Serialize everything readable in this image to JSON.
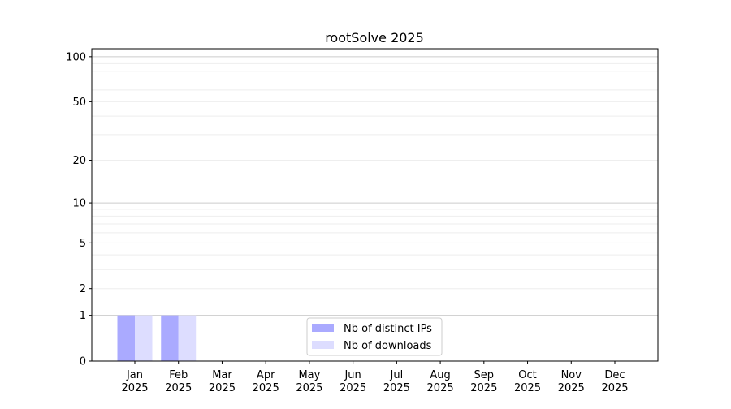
{
  "chart_data": {
    "type": "bar",
    "title": "rootSolve 2025",
    "xlabel": "",
    "ylabel": "",
    "y_scale": "log10(1+y)",
    "ylim": [
      0,
      113
    ],
    "y_ticks": [
      0,
      1,
      2,
      5,
      10,
      20,
      50,
      100
    ],
    "grid": true,
    "legend_position": "lower-center",
    "categories": [
      "Jan\n2025",
      "Feb\n2025",
      "Mar\n2025",
      "Apr\n2025",
      "May\n2025",
      "Jun\n2025",
      "Jul\n2025",
      "Aug\n2025",
      "Sep\n2025",
      "Oct\n2025",
      "Nov\n2025",
      "Dec\n2025"
    ],
    "series": [
      {
        "name": "Nb of distinct IPs",
        "color": "#aaaaff",
        "values": [
          1,
          1,
          0,
          0,
          0,
          0,
          0,
          0,
          0,
          0,
          0,
          0
        ]
      },
      {
        "name": "Nb of downloads",
        "color": "#ddddff",
        "values": [
          1,
          1,
          0,
          0,
          0,
          0,
          0,
          0,
          0,
          0,
          0,
          0
        ]
      }
    ]
  }
}
